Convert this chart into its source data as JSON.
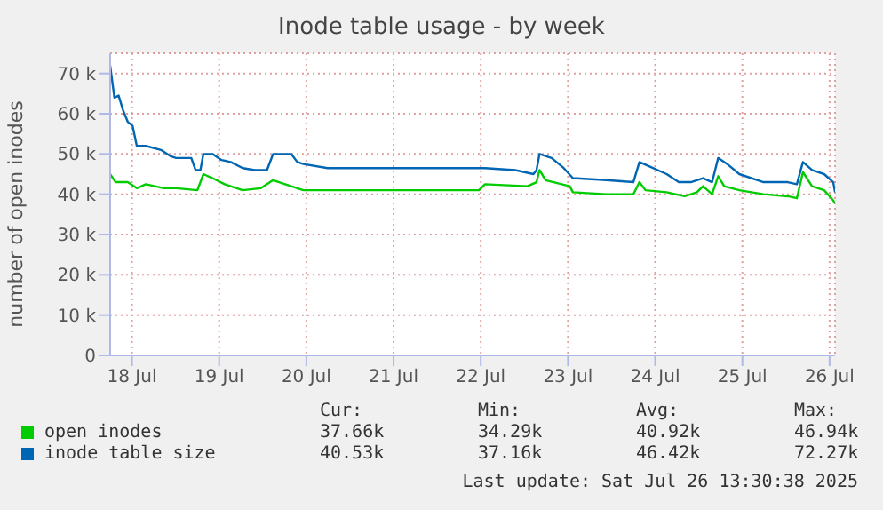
{
  "chart_data": {
    "type": "line",
    "title": "Inode table usage - by week",
    "ylabel": "number of open inodes",
    "grid": true,
    "legend": "bottom",
    "marker": "none",
    "xlim": [
      "2025-07-18T06:00",
      "2025-07-26T13:30"
    ],
    "xticks": [
      {
        "value": "2025-07-18T12:00",
        "label": "18 Jul"
      },
      {
        "value": "2025-07-19T12:00",
        "label": "19 Jul"
      },
      {
        "value": "2025-07-20T12:00",
        "label": "20 Jul"
      },
      {
        "value": "2025-07-21T12:00",
        "label": "21 Jul"
      },
      {
        "value": "2025-07-22T12:00",
        "label": "22 Jul"
      },
      {
        "value": "2025-07-23T12:00",
        "label": "23 Jul"
      },
      {
        "value": "2025-07-24T12:00",
        "label": "24 Jul"
      },
      {
        "value": "2025-07-25T12:00",
        "label": "25 Jul"
      },
      {
        "value": "2025-07-26T12:00",
        "label": "26 Jul"
      }
    ],
    "ylim": [
      0,
      75000
    ],
    "yticks": [
      0,
      {
        "value": 10000,
        "label": "10 k"
      },
      {
        "value": 20000,
        "label": "20 k"
      },
      {
        "value": 30000,
        "label": "30 k"
      },
      {
        "value": 40000,
        "label": "40 k"
      },
      {
        "value": 50000,
        "label": "50 k"
      },
      {
        "value": 60000,
        "label": "60 k"
      },
      {
        "value": 70000,
        "label": "70 k"
      }
    ],
    "series": [
      {
        "name": "open inodes",
        "color": "#00cc00",
        "x": [
          "2025-07-18T06:00",
          "2025-07-18T07:30",
          "2025-07-18T10:50",
          "2025-07-18T13:20",
          "2025-07-18T15:50",
          "2025-07-18T20:50",
          "2025-07-19T00:10",
          "2025-07-19T06:00",
          "2025-07-19T07:40",
          "2025-07-19T10:10",
          "2025-07-19T13:30",
          "2025-07-19T18:30",
          "2025-07-19T23:30",
          "2025-07-20T02:50",
          "2025-07-20T07:50",
          "2025-07-20T11:10",
          "2025-07-20T17:50",
          "2025-07-21T00:30",
          "2025-07-21T08:50",
          "2025-07-21T17:10",
          "2025-07-22T11:30",
          "2025-07-22T13:10",
          "2025-07-23T00:50",
          "2025-07-23T03:20",
          "2025-07-23T04:10",
          "2025-07-23T05:50",
          "2025-07-23T12:30",
          "2025-07-23T13:20",
          "2025-07-23T22:30",
          "2025-07-24T06:00",
          "2025-07-24T07:40",
          "2025-07-24T09:20",
          "2025-07-24T15:10",
          "2025-07-24T20:10",
          "2025-07-24T23:30",
          "2025-07-25T01:10",
          "2025-07-25T03:40",
          "2025-07-25T05:20",
          "2025-07-25T07:00",
          "2025-07-25T11:10",
          "2025-07-25T17:50",
          "2025-07-26T00:30",
          "2025-07-26T03:00",
          "2025-07-26T04:40",
          "2025-07-26T07:10",
          "2025-07-26T10:30",
          "2025-07-26T13:00",
          "2025-07-26T13:30"
        ],
        "values": [
          45000,
          43000,
          43000,
          41500,
          42500,
          41500,
          41500,
          41000,
          45000,
          44000,
          42500,
          41000,
          41500,
          43500,
          42000,
          41000,
          41000,
          41000,
          41000,
          41000,
          41000,
          42500,
          42000,
          43000,
          46000,
          43500,
          42000,
          40500,
          40000,
          40000,
          43000,
          41000,
          40500,
          39500,
          40500,
          42000,
          40000,
          44500,
          42000,
          41000,
          40000,
          39500,
          39000,
          45500,
          42000,
          41000,
          38500,
          37700
        ]
      },
      {
        "name": "inode table size",
        "color": "#0066b3",
        "x": [
          "2025-07-18T06:00",
          "2025-07-18T07:10",
          "2025-07-18T08:20",
          "2025-07-18T09:30",
          "2025-07-18T10:50",
          "2025-07-18T12:10",
          "2025-07-18T13:20",
          "2025-07-18T15:50",
          "2025-07-18T20:00",
          "2025-07-18T22:30",
          "2025-07-19T00:10",
          "2025-07-19T04:20",
          "2025-07-19T05:30",
          "2025-07-19T06:50",
          "2025-07-19T07:40",
          "2025-07-19T10:10",
          "2025-07-19T12:40",
          "2025-07-19T15:10",
          "2025-07-19T18:30",
          "2025-07-19T21:50",
          "2025-07-20T01:10",
          "2025-07-20T02:50",
          "2025-07-20T07:50",
          "2025-07-20T09:30",
          "2025-07-20T11:10",
          "2025-07-20T17:50",
          "2025-07-21T00:30",
          "2025-07-21T08:50",
          "2025-07-21T17:10",
          "2025-07-22T13:10",
          "2025-07-22T21:30",
          "2025-07-23T02:30",
          "2025-07-23T03:20",
          "2025-07-23T04:10",
          "2025-07-23T07:30",
          "2025-07-23T10:50",
          "2025-07-23T13:20",
          "2025-07-23T22:30",
          "2025-07-24T06:00",
          "2025-07-24T07:40",
          "2025-07-24T10:10",
          "2025-07-24T15:10",
          "2025-07-24T18:30",
          "2025-07-24T21:50",
          "2025-07-25T01:10",
          "2025-07-25T03:40",
          "2025-07-25T05:20",
          "2025-07-25T07:50",
          "2025-07-25T11:10",
          "2025-07-25T17:50",
          "2025-07-26T00:30",
          "2025-07-26T03:00",
          "2025-07-26T04:40",
          "2025-07-26T07:10",
          "2025-07-26T10:30",
          "2025-07-26T13:00",
          "2025-07-26T13:30"
        ],
        "values": [
          72000,
          64000,
          64500,
          61000,
          58000,
          57000,
          52000,
          52000,
          51000,
          49500,
          49000,
          49000,
          46000,
          46000,
          50000,
          50000,
          48500,
          48000,
          46500,
          46000,
          46000,
          50000,
          50000,
          48000,
          47500,
          46500,
          46500,
          46500,
          46500,
          46500,
          46000,
          45000,
          46000,
          50000,
          49000,
          46500,
          44000,
          43500,
          43000,
          48000,
          47000,
          45000,
          43000,
          43000,
          44000,
          43000,
          49000,
          47500,
          45000,
          43000,
          43000,
          42500,
          48000,
          46000,
          45000,
          43000,
          40500
        ]
      }
    ],
    "annotations": [
      "Cur:",
      "Min:",
      "Avg:",
      "Max:",
      "37.66k",
      "34.29k",
      "40.92k",
      "46.94k",
      "40.53k",
      "37.16k",
      "46.42k",
      "72.27k",
      "Last update: Sat Jul 26 13:30:38 2025"
    ]
  }
}
